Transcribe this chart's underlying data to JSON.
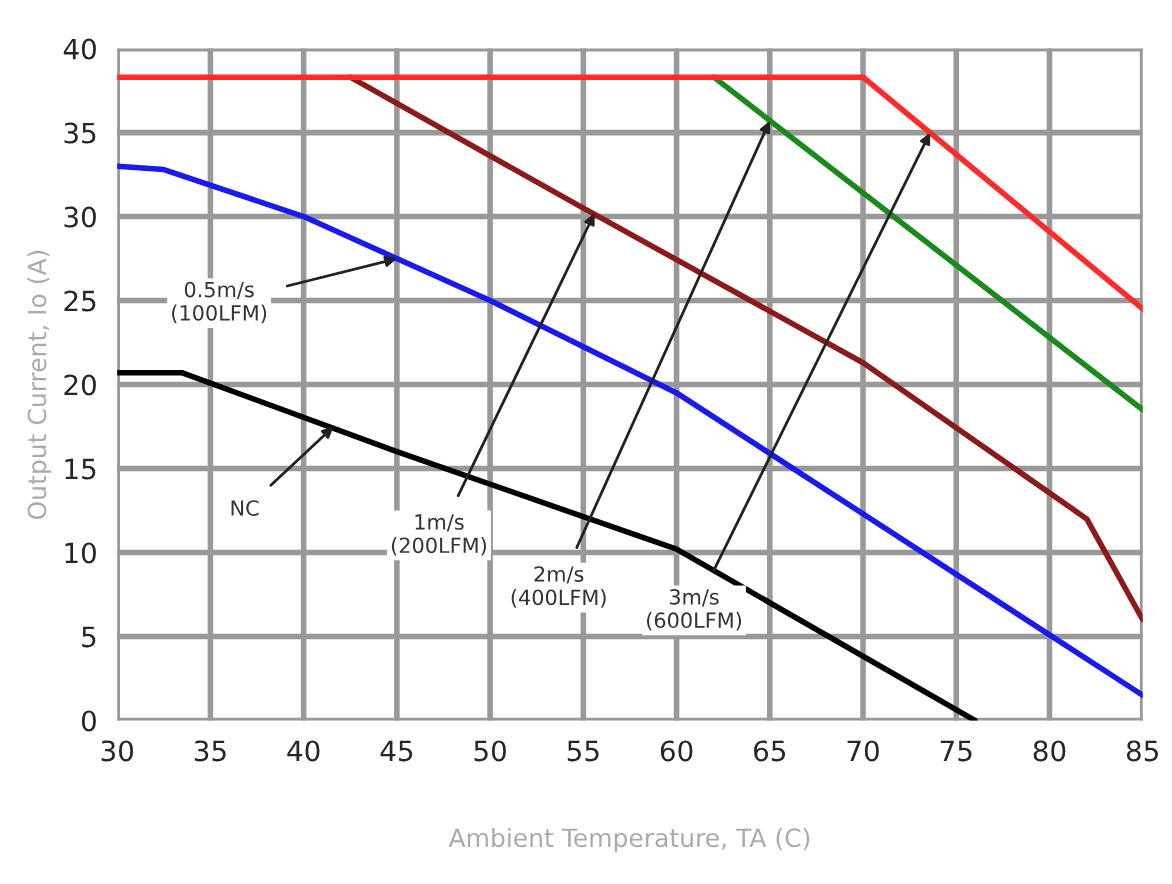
{
  "chart_data": {
    "type": "line",
    "xlabel": "Ambient Temperature, TA (C)",
    "ylabel": "Output Current, Io (A)",
    "xlim": [
      30,
      85
    ],
    "ylim": [
      0,
      40
    ],
    "xticks": [
      30,
      35,
      40,
      45,
      50,
      55,
      60,
      65,
      70,
      75,
      80,
      85
    ],
    "yticks": [
      0,
      5,
      10,
      15,
      20,
      25,
      30,
      35,
      40
    ],
    "grid": true,
    "line_style": "solid",
    "series": [
      {
        "color": "#000000",
        "x": [
          30,
          33.5,
          45,
          60,
          76
        ],
        "values": [
          20.7,
          20.7,
          16,
          10.2,
          0
        ]
      },
      {
        "color": "#1a1aee",
        "x": [
          30,
          32.5,
          40,
          50,
          60,
          85
        ],
        "values": [
          33,
          32.8,
          30,
          25,
          19.5,
          1.5
        ]
      },
      {
        "color": "#8b1a1a",
        "x": [
          42.5,
          55,
          70,
          82,
          85
        ],
        "values": [
          38.3,
          30.5,
          21.3,
          12,
          6
        ]
      },
      {
        "color": "#1a8a1a",
        "x": [
          62,
          85
        ],
        "values": [
          38.3,
          18.5
        ]
      },
      {
        "color": "#ff2a2a",
        "x": [
          30,
          70,
          85
        ],
        "values": [
          38.3,
          38.3,
          24.5
        ]
      }
    ],
    "annotations": [
      {
        "text": "0.5m/s\n(100LFM)",
        "x": 45,
        "y": 27.5
      },
      {
        "text": "NC",
        "x": 41.6,
        "y": 17.5
      },
      {
        "text": "1m/s\n(200LFM)",
        "x": 55.6,
        "y": 30.2
      },
      {
        "text": "2m/s\n(400LFM)",
        "x": 65,
        "y": 35.7
      },
      {
        "text": "3m/s\n(600LFM)",
        "x": 73.6,
        "y": 35
      }
    ]
  }
}
